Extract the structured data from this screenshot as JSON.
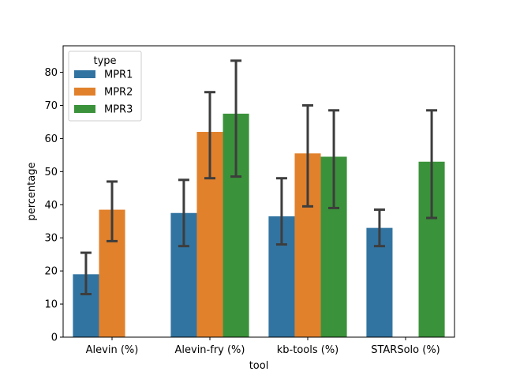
{
  "chart_data": {
    "type": "bar",
    "xlabel": "tool",
    "ylabel": "percentage",
    "ylim": [
      0,
      88
    ],
    "yticks": [
      0,
      10,
      20,
      30,
      40,
      50,
      60,
      70,
      80
    ],
    "categories": [
      "Alevin (%)",
      "Alevin-fry (%)",
      "kb-tools (%)",
      "STARSolo (%)"
    ],
    "legend": {
      "title": "type",
      "placement": "upper-left"
    },
    "series": [
      {
        "name": "MPR1",
        "color": "#3274a1",
        "values": [
          19.0,
          37.5,
          36.5,
          33.0
        ],
        "err_low": [
          13.0,
          27.5,
          28.0,
          27.5
        ],
        "err_high": [
          25.5,
          47.5,
          48.0,
          38.5
        ]
      },
      {
        "name": "MPR2",
        "color": "#e1812c",
        "values": [
          38.5,
          62.0,
          55.5,
          null
        ],
        "err_low": [
          29.0,
          48.0,
          39.5,
          null
        ],
        "err_high": [
          47.0,
          74.0,
          70.0,
          null
        ]
      },
      {
        "name": "MPR3",
        "color": "#3a923a",
        "values": [
          null,
          67.5,
          54.5,
          53.0
        ],
        "err_low": [
          null,
          48.5,
          39.0,
          36.0
        ],
        "err_high": [
          null,
          83.5,
          68.5,
          68.5
        ]
      }
    ]
  }
}
